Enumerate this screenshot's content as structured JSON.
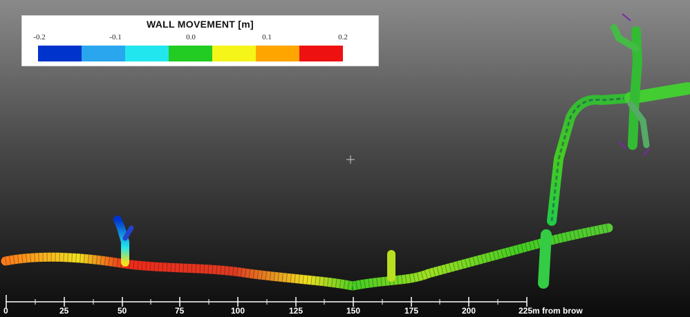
{
  "legend": {
    "title": "WALL MOVEMENT [m]",
    "ticks": [
      "-0.2",
      "-0.1",
      "0.0",
      "0.1",
      "0.2"
    ],
    "colors": [
      "#0033cc",
      "#2aa6ee",
      "#22e6ee",
      "#22cc22",
      "#f5f51a",
      "#ffa500",
      "#ee1111"
    ]
  },
  "scale": {
    "labels": [
      "0",
      "25",
      "50",
      "75",
      "100",
      "125",
      "150",
      "175",
      "200",
      "225m from brow"
    ]
  }
}
